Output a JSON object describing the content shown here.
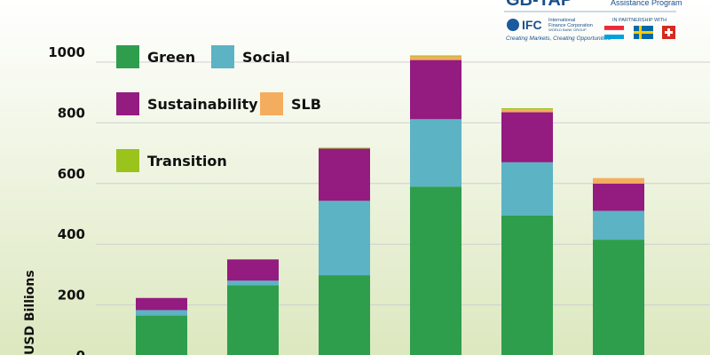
{
  "header": {
    "logo_fragment": "GB-TAP",
    "program_text": "Assistance Program",
    "ifc_label": "IFC",
    "ifc_name_line1": "International",
    "ifc_name_line2": "Finance Corporation",
    "ifc_group": "WORLD BANK GROUP",
    "ifc_tagline": "Creating Markets, Creating Opportunities",
    "partnership_label": "IN PARTNERSHIP WITH"
  },
  "colors": {
    "Green": "#2e9e4d",
    "Social": "#5cb3c4",
    "Sustainability": "#941b80",
    "SLB": "#f4ad5f",
    "Transition": "#9ac31c",
    "background_top": "#ffffff",
    "background_bottom": "#dce8bf",
    "grid": "#cfcfcf"
  },
  "chart_data": {
    "type": "bar",
    "stacked": true,
    "ylabel": "USD Billions",
    "ylim": [
      0,
      1000
    ],
    "yticks": [
      0,
      200,
      400,
      600,
      800,
      1000
    ],
    "grid": true,
    "legend_position": "top-left",
    "categories": [
      "",
      "",
      "",
      "",
      "",
      ""
    ],
    "series": [
      {
        "name": "Green",
        "values": [
          165,
          265,
          298,
          590,
          495,
          415
        ]
      },
      {
        "name": "Social",
        "values": [
          18,
          15,
          245,
          222,
          175,
          95
        ]
      },
      {
        "name": "Sustainability",
        "values": [
          40,
          70,
          172,
          195,
          165,
          90
        ]
      },
      {
        "name": "SLB",
        "values": [
          0,
          0,
          0,
          12,
          10,
          18
        ]
      },
      {
        "name": "Transition",
        "values": [
          0,
          0,
          3,
          3,
          3,
          0
        ]
      }
    ]
  }
}
